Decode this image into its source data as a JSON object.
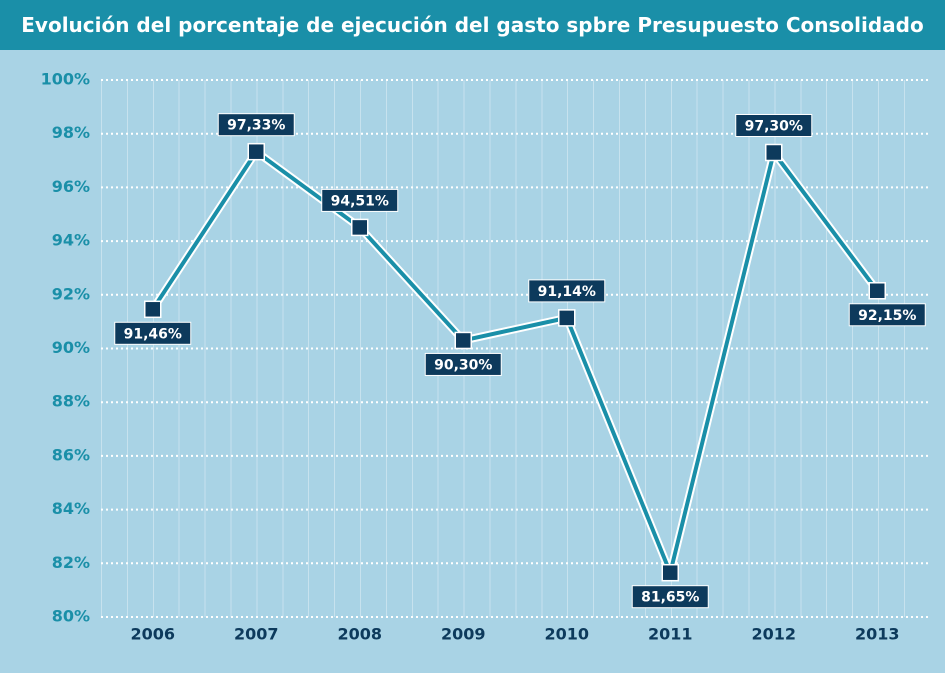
{
  "chart_data": {
    "type": "line",
    "title": "Evolución del porcentaje de ejecución del gasto spbre Presupuesto Consolidado",
    "categories": [
      "2006",
      "2007",
      "2008",
      "2009",
      "2010",
      "2011",
      "2012",
      "2013"
    ],
    "series": [
      {
        "color": "#1a8fa8",
        "values": [
          91.46,
          97.33,
          94.51,
          90.3,
          91.14,
          81.65,
          97.3,
          92.15
        ],
        "value_labels": [
          "91,46%",
          "97,33%",
          "94,51%",
          "90,30%",
          "91,14%",
          "81,65%",
          "97,30%",
          "92,15%"
        ]
      }
    ],
    "ylim": [
      80,
      100
    ],
    "yticks": [
      {
        "value": 80,
        "label": "80%"
      },
      {
        "value": 82,
        "label": "82%"
      },
      {
        "value": 84,
        "label": "84%"
      },
      {
        "value": 86,
        "label": "86%"
      },
      {
        "value": 88,
        "label": "88%"
      },
      {
        "value": 90,
        "label": "90%"
      },
      {
        "value": 92,
        "label": "92%"
      },
      {
        "value": 94,
        "label": "94%"
      },
      {
        "value": 96,
        "label": "96%"
      },
      {
        "value": 98,
        "label": "98%"
      },
      {
        "value": 100,
        "label": "100%"
      }
    ],
    "grid": true
  }
}
